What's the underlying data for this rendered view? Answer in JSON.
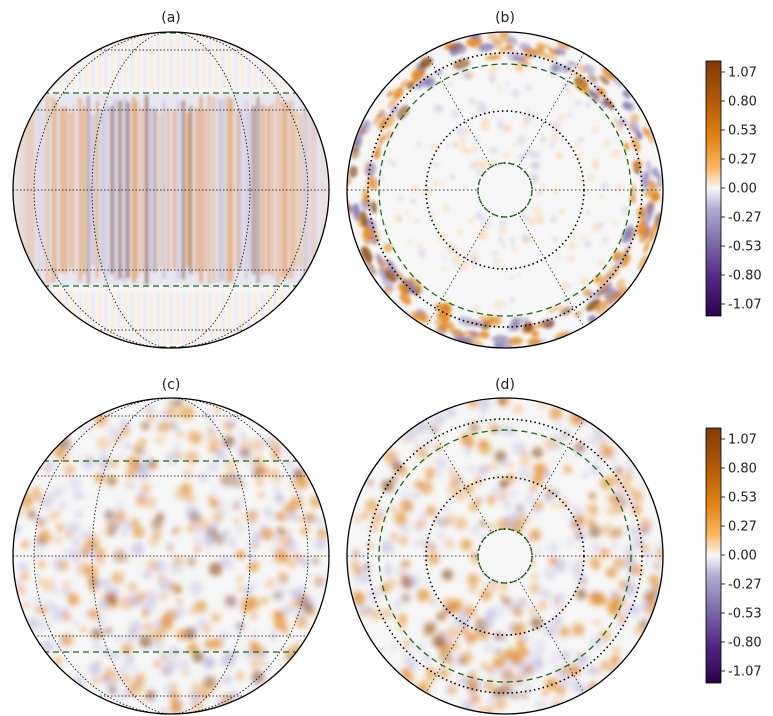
{
  "panels": [
    {
      "label": "(a)",
      "projection": "orthographic-equatorial",
      "pattern": "vertical-bands"
    },
    {
      "label": "(b)",
      "projection": "polar",
      "pattern": "rim-blobs"
    },
    {
      "label": "(c)",
      "projection": "orthographic-equatorial",
      "pattern": "mottled-orange"
    },
    {
      "label": "(d)",
      "projection": "polar",
      "pattern": "mottled-orange"
    }
  ],
  "colorbar": {
    "ticks": [
      "1.07",
      "0.80",
      "0.53",
      "0.27",
      "0.00",
      "-0.27",
      "-0.53",
      "-0.80",
      "-1.07"
    ],
    "colors": {
      "max": "#7f3b08",
      "high": "#e08214",
      "mid_high": "#fdb863",
      "zero": "#f7f7f7",
      "mid_low": "#b2abd2",
      "low": "#8073ac",
      "min": "#2d004b"
    }
  },
  "styles": {
    "outline_color": "#000000",
    "grid_color": "#000000",
    "dashed_circle_color": "#1a6b1a"
  }
}
